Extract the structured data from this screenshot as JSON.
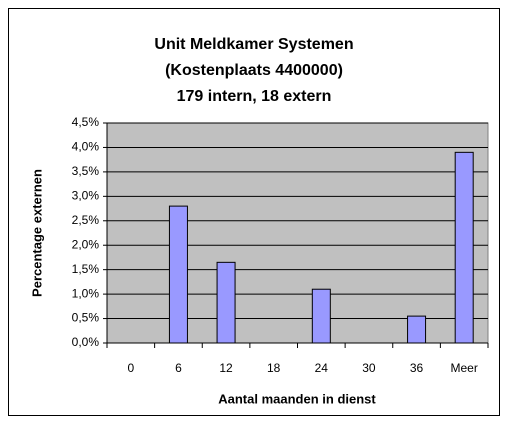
{
  "chart_data": {
    "type": "bar",
    "title": [
      "Unit Meldkamer Systemen",
      "(Kostenplaats 4400000)",
      "179 intern, 18 extern"
    ],
    "xlabel": "Aantal maanden in dienst",
    "ylabel": "Percentage externen",
    "categories": [
      "0",
      "6",
      "12",
      "18",
      "24",
      "30",
      "36",
      "Meer"
    ],
    "values": [
      0,
      2.8,
      1.65,
      0,
      1.1,
      0,
      0.55,
      3.9
    ],
    "color": "#9999ff",
    "ylim": [
      0,
      4.5
    ],
    "yticks": [
      {
        "value": 0,
        "label": "0,0%"
      },
      {
        "value": 0.5,
        "label": "0,5%"
      },
      {
        "value": 1,
        "label": "1,0%"
      },
      {
        "value": 1.5,
        "label": "1,5%"
      },
      {
        "value": 2,
        "label": "2,0%"
      },
      {
        "value": 2.5,
        "label": "2,5%"
      },
      {
        "value": 3,
        "label": "3,0%"
      },
      {
        "value": 3.5,
        "label": "3,5%"
      },
      {
        "value": 4,
        "label": "4,0%"
      },
      {
        "value": 4.5,
        "label": "4,5%"
      }
    ],
    "grid": true
  }
}
